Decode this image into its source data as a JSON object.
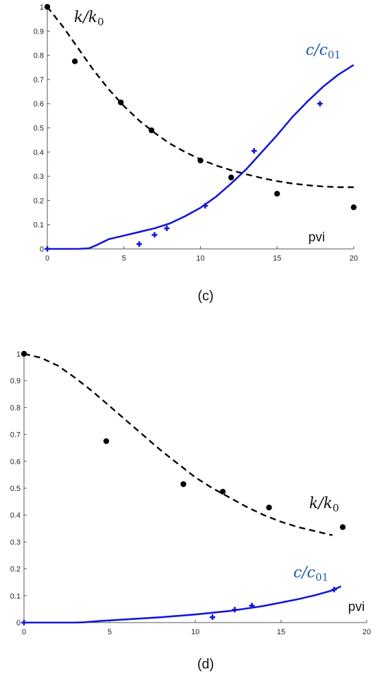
{
  "chart_data": [
    {
      "type": "line",
      "panel_label": "(c)",
      "xlabel": "pvi",
      "xlim": [
        0,
        20
      ],
      "ylim": [
        0,
        1
      ],
      "x_ticks": [
        "0",
        "5",
        "10",
        "15",
        "20"
      ],
      "y_ticks": [
        "0",
        "0.1",
        "0.2",
        "0.3",
        "0.4",
        "0.5",
        "0.6",
        "0.7",
        "0.8",
        "0.9",
        "1"
      ],
      "series": [
        {
          "name": "k/k0",
          "style": "dashed",
          "color": "#000000",
          "x": [
            0,
            1,
            2,
            3,
            4,
            5,
            6,
            7,
            8,
            9,
            10,
            11,
            12,
            13,
            14,
            15,
            16,
            17,
            18,
            19,
            20
          ],
          "y": [
            1.0,
            0.92,
            0.83,
            0.74,
            0.66,
            0.59,
            0.53,
            0.48,
            0.435,
            0.4,
            0.37,
            0.345,
            0.325,
            0.308,
            0.293,
            0.28,
            0.27,
            0.263,
            0.258,
            0.255,
            0.255
          ]
        },
        {
          "name": "k/k0 measured",
          "style": "markers-dot",
          "color": "#000000",
          "x": [
            0,
            1.8,
            4.8,
            6.8,
            10,
            12,
            15,
            20
          ],
          "y": [
            1.0,
            0.775,
            0.605,
            0.49,
            0.365,
            0.295,
            0.228,
            0.172
          ]
        },
        {
          "name": "c/c01",
          "style": "solid",
          "color": "#1515d6",
          "x": [
            0,
            1,
            2,
            2.7,
            3.2,
            4,
            5,
            6,
            7,
            8,
            9,
            10,
            11,
            12,
            13,
            14,
            15,
            16,
            17,
            18,
            19,
            20
          ],
          "y": [
            0,
            0,
            0,
            0.002,
            0.015,
            0.04,
            0.055,
            0.07,
            0.085,
            0.105,
            0.135,
            0.17,
            0.215,
            0.27,
            0.33,
            0.4,
            0.47,
            0.545,
            0.61,
            0.67,
            0.72,
            0.76
          ]
        },
        {
          "name": "c/c01 measured",
          "style": "markers-plus",
          "color": "#1515d6",
          "x": [
            0,
            6,
            7,
            7.8,
            10.3,
            13.5,
            17.8
          ],
          "y": [
            0,
            0.02,
            0.058,
            0.085,
            0.178,
            0.405,
            0.6
          ]
        }
      ],
      "annotations": [
        {
          "text": "k/k0",
          "base": "k/k",
          "sub": "0",
          "color": "#111111"
        },
        {
          "text": "c/c01",
          "base": "c/c",
          "sub": "01",
          "color": "#1a5aa8"
        }
      ]
    },
    {
      "type": "line",
      "panel_label": "(d)",
      "xlabel": "pvi",
      "xlim": [
        0,
        20
      ],
      "ylim": [
        0,
        1
      ],
      "x_ticks": [
        "0",
        "5",
        "10",
        "15",
        "20"
      ],
      "y_ticks": [
        "0",
        "0.1",
        "0.2",
        "0.3",
        "0.4",
        "0.5",
        "0.6",
        "0.7",
        "0.8",
        "0.9",
        "1"
      ],
      "series": [
        {
          "name": "k/k0",
          "style": "dashed",
          "color": "#000000",
          "x": [
            0,
            1,
            2,
            3,
            4,
            5,
            6,
            7,
            8,
            9,
            10,
            11,
            12,
            13,
            14,
            15,
            16,
            17,
            18
          ],
          "y": [
            1.0,
            0.985,
            0.955,
            0.91,
            0.86,
            0.805,
            0.75,
            0.695,
            0.64,
            0.59,
            0.54,
            0.5,
            0.465,
            0.43,
            0.4,
            0.375,
            0.355,
            0.34,
            0.325
          ]
        },
        {
          "name": "k/k0 measured",
          "style": "markers-dot",
          "color": "#000000",
          "x": [
            0,
            4.8,
            9.3,
            11.6,
            14.3,
            18.6
          ],
          "y": [
            1.0,
            0.675,
            0.515,
            0.487,
            0.428,
            0.355
          ]
        },
        {
          "name": "c/c01",
          "style": "solid",
          "color": "#1515d6",
          "x": [
            0,
            1,
            2,
            3,
            3.5,
            4.5,
            6,
            8,
            10,
            12,
            14,
            16,
            17,
            18,
            18.5
          ],
          "y": [
            0,
            0,
            0,
            0,
            0.001,
            0.006,
            0.012,
            0.02,
            0.03,
            0.043,
            0.062,
            0.087,
            0.102,
            0.12,
            0.135
          ]
        },
        {
          "name": "c/c01 measured",
          "style": "markers-plus",
          "color": "#1515d6",
          "x": [
            0,
            11,
            12.3,
            13.3,
            18.1
          ],
          "y": [
            0,
            0.02,
            0.048,
            0.063,
            0.123
          ]
        }
      ],
      "annotations": [
        {
          "text": "k/k0",
          "base": "k/k",
          "sub": "0",
          "color": "#111111"
        },
        {
          "text": "c/c01",
          "base": "c/c",
          "sub": "01",
          "color": "#1a5aa8"
        }
      ]
    }
  ]
}
